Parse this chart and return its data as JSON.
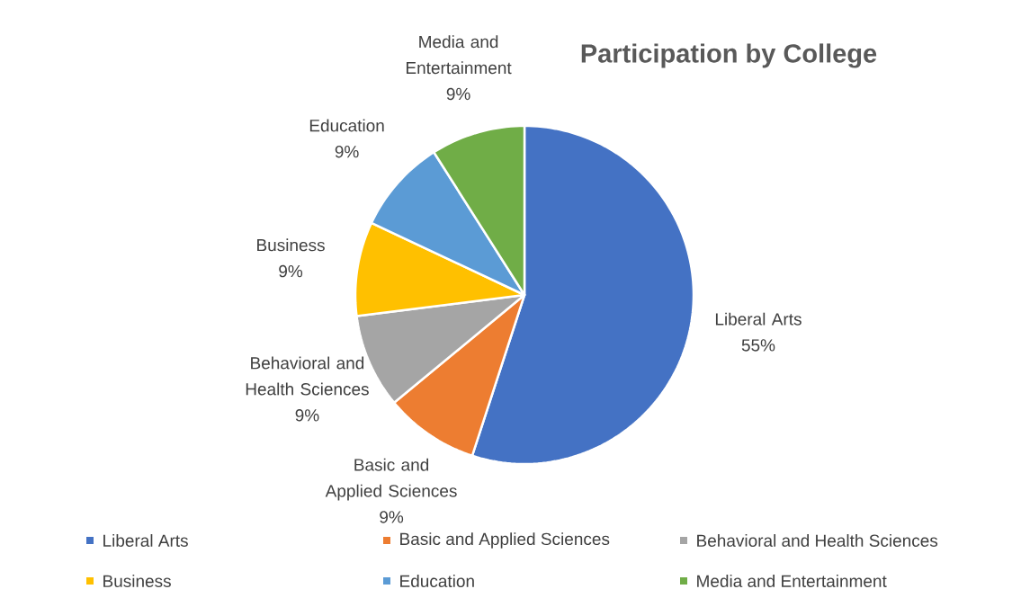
{
  "chart_data": {
    "type": "pie",
    "title": "Participation by College",
    "categories": [
      "Liberal Arts",
      "Basic and Applied Sciences",
      "Behavioral and Health Sciences",
      "Business",
      "Education",
      "Media and Entertainment"
    ],
    "values": [
      55,
      9,
      9,
      9,
      9,
      9
    ],
    "value_labels": [
      "55%",
      "9%",
      "9%",
      "9%",
      "9%",
      "9%"
    ],
    "colors": [
      "#4472c4",
      "#ed7d31",
      "#a5a5a5",
      "#ffc000",
      "#5b9bd5",
      "#70ad47"
    ],
    "legend": "bottom"
  }
}
